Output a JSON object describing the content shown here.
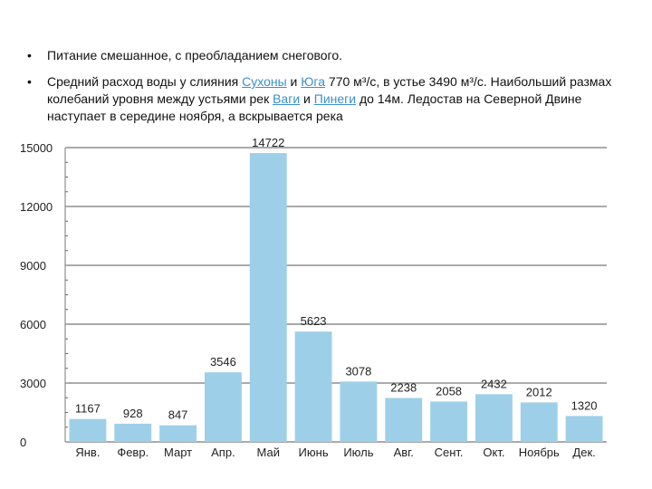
{
  "bullets": [
    {
      "parts": [
        {
          "text": "Питание смешанное, с преобладанием снегового.",
          "link": false
        }
      ]
    },
    {
      "parts": [
        {
          "text": "Средний расход воды у слияния ",
          "link": false
        },
        {
          "text": "Сухоны",
          "link": true
        },
        {
          "text": " и ",
          "link": false
        },
        {
          "text": "Юга",
          "link": true
        },
        {
          "text": " 770 м³/с, в устье 3490 м³/с. Наибольший размах колебаний уровня между устьями рек ",
          "link": false
        },
        {
          "text": "Ваги",
          "link": true
        },
        {
          "text": " и ",
          "link": false
        },
        {
          "text": "Пинеги",
          "link": true
        },
        {
          "text": " до 14м. Ледостав на Северной Двине наступает в середине ноября, а вскрывается река",
          "link": false
        }
      ]
    }
  ],
  "bullet_symbol": "•",
  "chart_data": {
    "type": "bar",
    "title": "",
    "xlabel": "",
    "ylabel": "",
    "categories": [
      "Янв.",
      "Февр.",
      "Март",
      "Апр.",
      "Май",
      "Июнь",
      "Июль",
      "Авг.",
      "Сент.",
      "Окт.",
      "Ноябрь",
      "Дек."
    ],
    "values": [
      1167,
      928,
      847,
      3546,
      14722,
      5623,
      3078,
      2238,
      2058,
      2432,
      2012,
      1320
    ],
    "data_labels": [
      "1167",
      "928",
      "847",
      "3546",
      "14722",
      "5623",
      "3078",
      "2238",
      "2058",
      "2432",
      "2012",
      "1320"
    ],
    "ylim": [
      0,
      15000
    ],
    "yticks": [
      0,
      3000,
      6000,
      9000,
      12000,
      15000
    ],
    "grid": true,
    "legend": "none",
    "colors": {
      "bar": "#9ecfe8",
      "grid": "#555555",
      "text": "#222222"
    }
  }
}
